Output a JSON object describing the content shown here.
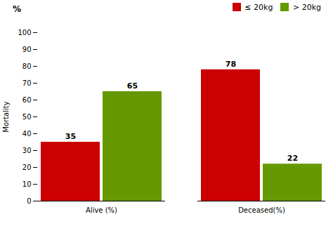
{
  "chart_data": {
    "type": "bar",
    "categories": [
      "Alive (%)",
      "Deceased(%)"
    ],
    "series": [
      {
        "name": "≤ 20kg",
        "color": "#cc0000",
        "values": [
          35,
          78
        ]
      },
      {
        "name": "> 20kg",
        "color": "#669900",
        "values": [
          65,
          22
        ]
      }
    ],
    "ylabel": "Mortality",
    "annotations": [
      "%"
    ],
    "ylim": [
      0,
      100
    ],
    "yticks": [
      0,
      10,
      20,
      30,
      40,
      50,
      60,
      70,
      80,
      90,
      100
    ],
    "grid": false,
    "legend": "upper right",
    "data_labels": true
  }
}
